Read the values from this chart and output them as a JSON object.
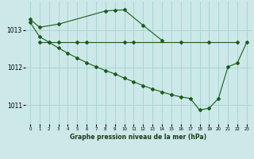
{
  "title": "Graphe pression niveau de la mer (hPa)",
  "bg_color": "#cce8e8",
  "grid_color": "#aad4d4",
  "line_color": "#1a5c1a",
  "marker_color": "#1a5c1a",
  "ylim": [
    1010.5,
    1013.75
  ],
  "xlim": [
    -0.5,
    23.5
  ],
  "yticks": [
    1011,
    1012,
    1013
  ],
  "xticks": [
    0,
    1,
    2,
    3,
    4,
    5,
    6,
    7,
    8,
    9,
    10,
    11,
    12,
    13,
    14,
    15,
    16,
    17,
    18,
    19,
    20,
    21,
    22,
    23
  ],
  "series1_x": [
    0,
    1,
    3,
    8,
    9,
    10,
    12,
    14
  ],
  "series1_y": [
    1013.28,
    1013.07,
    1013.15,
    1013.5,
    1013.52,
    1013.53,
    1013.12,
    1012.72
  ],
  "series2_x": [
    1,
    2,
    3,
    5,
    6,
    10,
    11,
    16,
    19,
    22
  ],
  "series2_y": [
    1012.67,
    1012.67,
    1012.67,
    1012.67,
    1012.67,
    1012.67,
    1012.67,
    1012.67,
    1012.67,
    1012.67
  ],
  "series3_x": [
    0,
    1,
    2,
    3,
    4,
    5,
    6,
    7,
    8,
    9,
    10,
    11,
    12,
    13,
    14,
    15,
    16,
    17,
    18,
    19,
    20,
    21,
    22,
    23
  ],
  "series3_y": [
    1013.2,
    1012.82,
    1012.67,
    1012.52,
    1012.38,
    1012.25,
    1012.13,
    1012.02,
    1011.92,
    1011.83,
    1011.72,
    1011.62,
    1011.52,
    1011.43,
    1011.35,
    1011.28,
    1011.22,
    1011.18,
    1010.87,
    1010.92,
    1011.18,
    1012.02,
    1012.12,
    1012.67
  ]
}
